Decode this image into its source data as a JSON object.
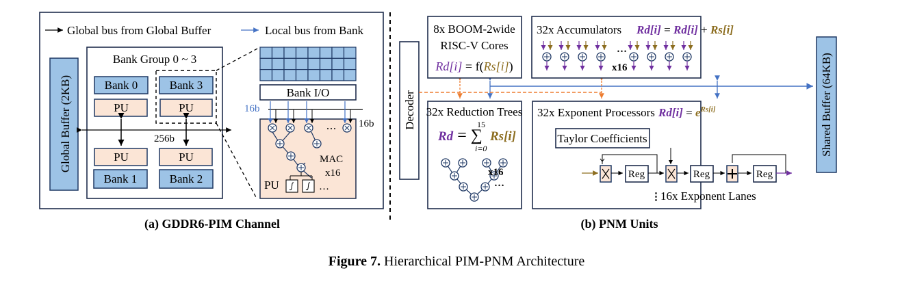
{
  "legend": {
    "global_bus": "Global bus from Global Buffer",
    "local_bus": "Local bus from Bank"
  },
  "pim": {
    "global_buffer": "Global Buffer (2KB)",
    "bank_group": "Bank Group 0 ~ 3",
    "banks": [
      "Bank 0",
      "Bank 3",
      "Bank 1",
      "Bank 2"
    ],
    "pu": "PU",
    "bus_width": "256b",
    "bank_io": "Bank I/O",
    "local_width": "16b",
    "global_width": "16b",
    "mac": "MAC",
    "mac_count": "x16",
    "ellipsis": "…",
    "caption": "(a) GDDR6-PIM Channel"
  },
  "pnm": {
    "decoder": "Decoder",
    "shared_buffer": "Shared Buffer (64KB)",
    "cores": {
      "title1": "8x BOOM-2wide",
      "title2": "RISC-V Cores",
      "eq_lhs": "Rd[i]",
      "eq_mid": " = f(",
      "eq_arg": "Rs[i]",
      "eq_end": ")"
    },
    "accumulators": {
      "title": "32x Accumulators",
      "eq_lhs": "Rd[i]",
      "eq_mid": " = ",
      "eq_a": "Rd[i]",
      "eq_plus": " + ",
      "eq_b": "Rs[i]",
      "count": "x16",
      "ellipsis": "…"
    },
    "reduction": {
      "title": "32x Reduction Trees",
      "eq_lhs": "Rd",
      "eq_mid": " = ∑",
      "upper": "15",
      "lower": "i=0",
      "eq_rhs": "Rs[i]",
      "count": "x16",
      "ellipsis": "…"
    },
    "exponent": {
      "title": "32x Exponent Processors",
      "eq_lhs": "Rd[i]",
      "eq_mid": " = ",
      "eq_base": "e",
      "eq_exp": "Rs[i]",
      "taylor": "Taylor Coefficients",
      "reg": "Reg",
      "lanes": "16x Exponent Lanes",
      "vdots": "⋮"
    },
    "caption": "(b) PNM Units"
  },
  "figure_caption": {
    "label": "Figure 7.",
    "text": " Hierarchical PIM-PNM Architecture"
  },
  "colors": {
    "bank_blue": "#9dc3e6",
    "pu_peach": "#fbe5d6",
    "purple": "#7030a0",
    "gold": "#8c6d1f",
    "orange": "#ed7d31",
    "local_bus": "#4472c4"
  }
}
